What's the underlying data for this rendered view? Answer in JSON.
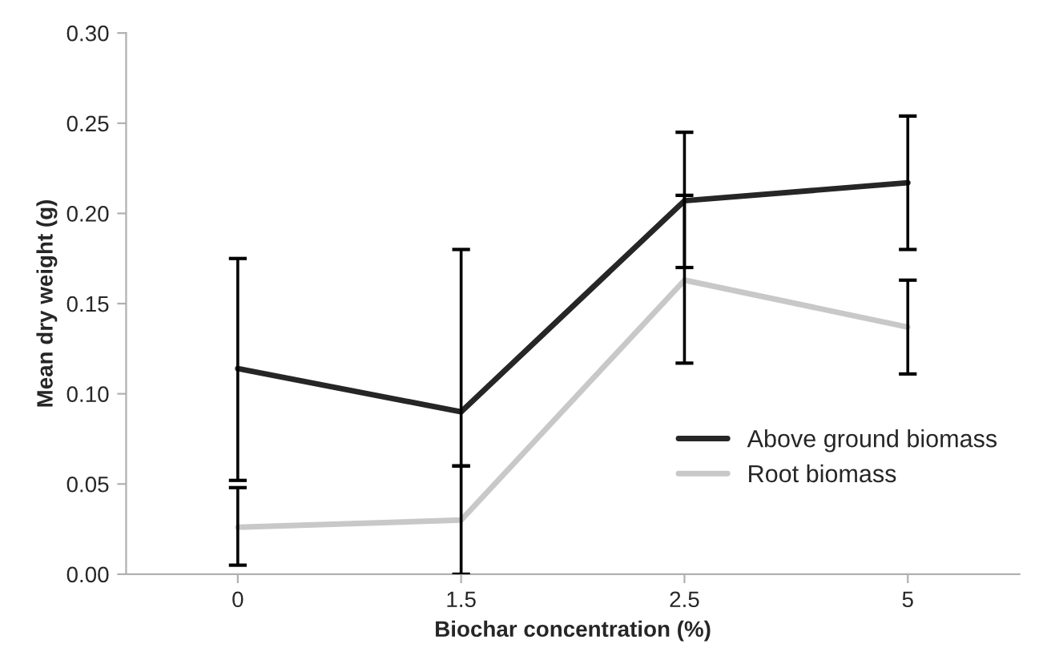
{
  "chart_data": {
    "type": "line",
    "xlabel": "Biochar concentration (%)",
    "ylabel": "Mean dry weight (g)",
    "categories": [
      "0",
      "1.5",
      "2.5",
      "5"
    ],
    "series": [
      {
        "name": "Above ground biomass",
        "color": "#262626",
        "values": [
          0.114,
          0.09,
          0.207,
          0.217
        ],
        "errors": [
          [
            0.052,
            0.175
          ],
          [
            0.06,
            0.18
          ],
          [
            0.17,
            0.245
          ],
          [
            0.18,
            0.254
          ]
        ]
      },
      {
        "name": "Root biomass",
        "color": "#c8c8c8",
        "values": [
          0.026,
          0.03,
          0.163,
          0.137
        ],
        "errors": [
          [
            0.005,
            0.048
          ],
          [
            0.0,
            0.06
          ],
          [
            0.117,
            0.21
          ],
          [
            0.111,
            0.163
          ]
        ]
      }
    ],
    "ylim": [
      0,
      0.3
    ],
    "yticks": [
      {
        "value": 0,
        "label": "0.00"
      },
      {
        "value": 0.05,
        "label": "0.05"
      },
      {
        "value": 0.1,
        "label": "0.10"
      },
      {
        "value": 0.15,
        "label": "0.15"
      },
      {
        "value": 0.2,
        "label": "0.20"
      },
      {
        "value": 0.25,
        "label": "0.25"
      },
      {
        "value": 0.3,
        "label": "0.30"
      }
    ],
    "legend": "bottom right",
    "grid": false,
    "marker": "none",
    "line_style": "solid"
  }
}
